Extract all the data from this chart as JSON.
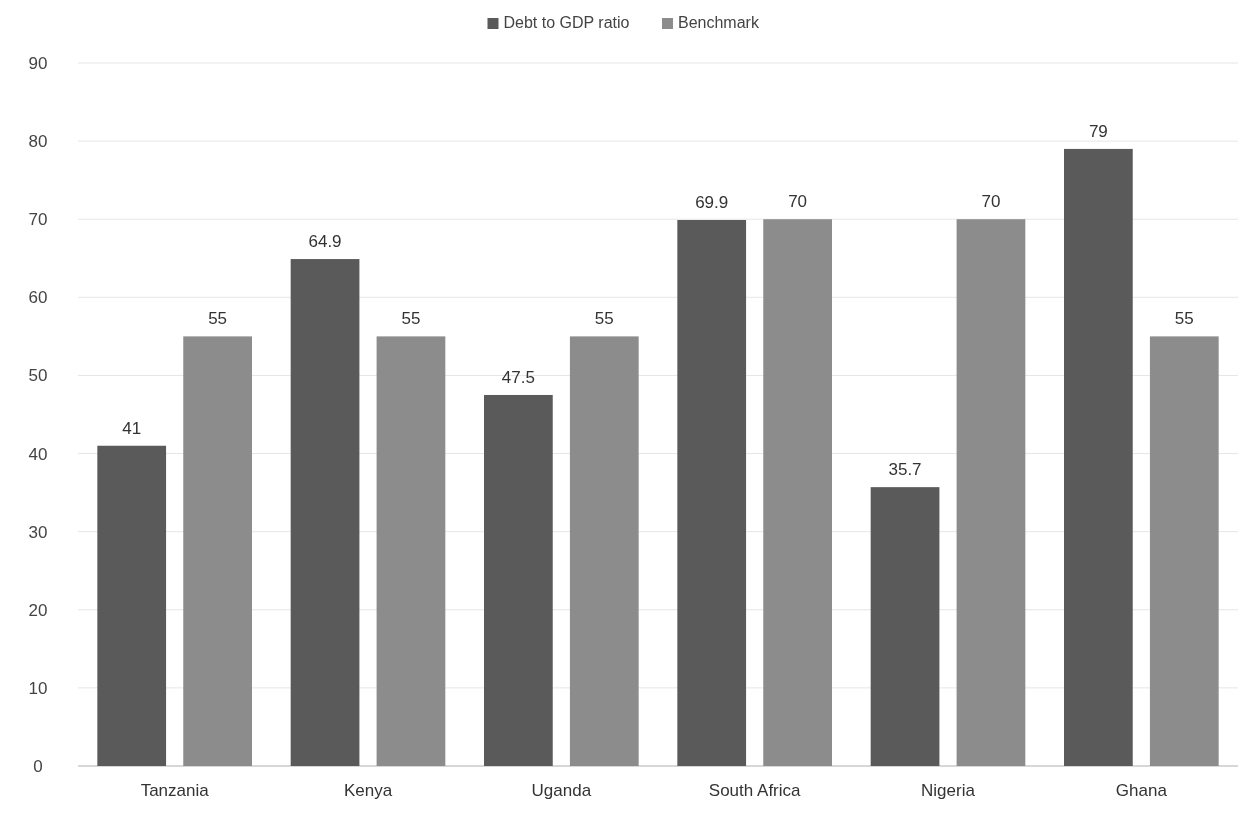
{
  "chart_data": {
    "type": "bar",
    "categories": [
      "Tanzania",
      "Kenya",
      "Uganda",
      "South Africa",
      "Nigeria",
      "Ghana"
    ],
    "series": [
      {
        "name": "Debt to GDP ratio",
        "color": "#5a5a5a",
        "values": [
          41,
          64.9,
          47.5,
          69.9,
          35.7,
          79
        ]
      },
      {
        "name": "Benchmark",
        "color": "#8c8c8c",
        "values": [
          55,
          55,
          55,
          70,
          70,
          55
        ]
      }
    ],
    "ylim": [
      0,
      90
    ],
    "yticks": [
      0,
      10,
      20,
      30,
      40,
      50,
      60,
      70,
      80,
      90
    ],
    "grid": "y",
    "legend": "top",
    "data_labels": true
  }
}
